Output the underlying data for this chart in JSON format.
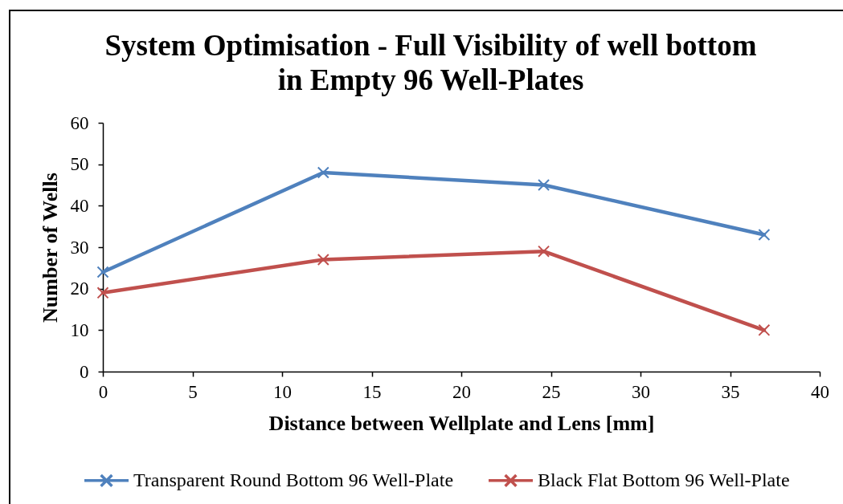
{
  "chart_data": {
    "type": "line",
    "title": "System Optimisation - Full Visibility of well bottom in Empty 96 Well-Plates",
    "xlabel": "Distance between Wellplate and Lens [mm]",
    "ylabel": "Number of Wells",
    "x": [
      0,
      12.3,
      24.6,
      36.9
    ],
    "series": [
      {
        "name": "Transparent Round Bottom 96 Well-Plate",
        "color": "#4f81bd",
        "values": [
          24,
          48,
          45,
          33
        ]
      },
      {
        "name": "Black Flat Bottom 96 Well-Plate",
        "color": "#c0504d",
        "values": [
          19,
          27,
          29,
          10
        ]
      }
    ],
    "xlim": [
      0,
      40
    ],
    "xticks": [
      0,
      5,
      10,
      15,
      20,
      25,
      30,
      35,
      40
    ],
    "ylim": [
      0,
      60
    ],
    "yticks": [
      0,
      10,
      20,
      30,
      40,
      50,
      60
    ],
    "legend": "bottom",
    "marker": "cross",
    "line_style": "solid"
  }
}
